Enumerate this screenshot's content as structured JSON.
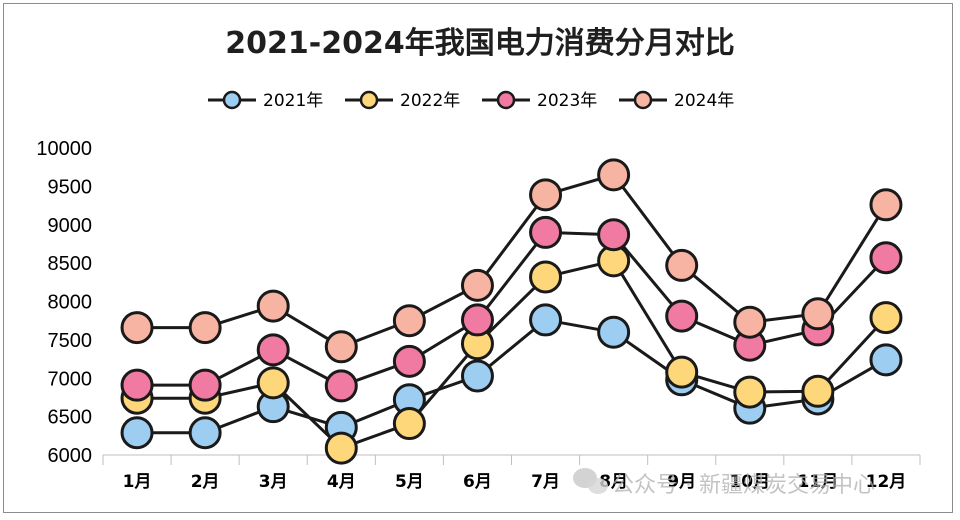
{
  "chart_data": {
    "type": "line",
    "title": "2021-2024年我国电力消费分月对比",
    "categories": [
      "1月",
      "2月",
      "3月",
      "4月",
      "5月",
      "6月",
      "7月",
      "8月",
      "9月",
      "10月",
      "11月",
      "12月"
    ],
    "ylim": [
      6000,
      10000
    ],
    "yticks": [
      6000,
      6500,
      7000,
      7500,
      8000,
      8500,
      9000,
      9500,
      10000
    ],
    "grid": false,
    "legend": "top",
    "series": [
      {
        "name": "2021年",
        "color": "#9dcdf0",
        "values": [
          6290,
          6290,
          6630,
          6360,
          6720,
          7030,
          7760,
          7600,
          6980,
          6610,
          6730,
          7240
        ]
      },
      {
        "name": "2022年",
        "color": "#fdd77a",
        "values": [
          6740,
          6740,
          6940,
          6090,
          6410,
          7450,
          8320,
          8530,
          7080,
          6820,
          6830,
          7790
        ]
      },
      {
        "name": "2023年",
        "color": "#f07aa2",
        "values": [
          6910,
          6910,
          7370,
          6900,
          7220,
          7760,
          8900,
          8870,
          7810,
          7430,
          7630,
          8570
        ]
      },
      {
        "name": "2024年",
        "color": "#f8b4a2",
        "values": [
          7660,
          7660,
          7940,
          7410,
          7750,
          8210,
          9390,
          9650,
          8470,
          7730,
          7840,
          9260
        ]
      }
    ]
  },
  "watermark": "公众号 · 新疆煤炭交易中心"
}
